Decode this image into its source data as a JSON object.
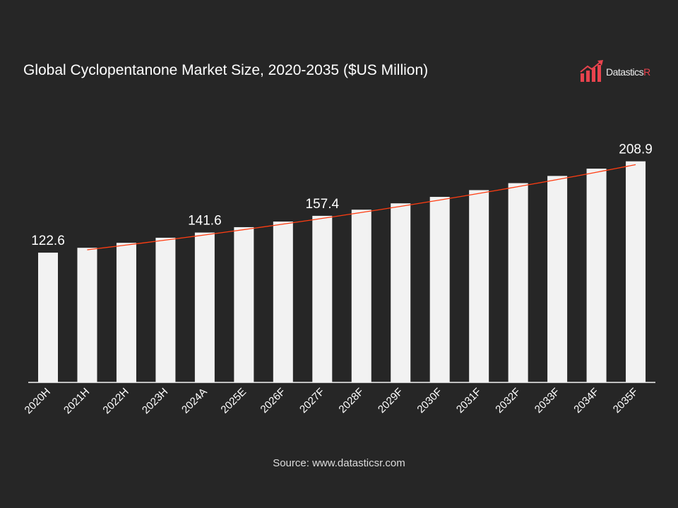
{
  "title": "Global Cyclopentanone Market Size, 2020-2035 ($US Million)",
  "logo": {
    "text_main": "Datastics",
    "text_accent": "R",
    "accent_color": "#e8434d"
  },
  "source": "Source: www.datasticsr.com",
  "chart_data": {
    "type": "bar",
    "title": "Global Cyclopentanone Market Size, 2020-2035 ($US Million)",
    "categories": [
      "2020H",
      "2021H",
      "2022H",
      "2023H",
      "2024A",
      "2025E",
      "2026F",
      "2027F",
      "2028F",
      "2029F",
      "2030F",
      "2031F",
      "2032F",
      "2033F",
      "2034F",
      "2035F"
    ],
    "values": [
      122.6,
      127.2,
      131.9,
      136.7,
      141.6,
      146.7,
      152.0,
      157.4,
      163.2,
      169.2,
      175.3,
      181.7,
      188.3,
      195.1,
      202.0,
      208.9
    ],
    "data_labels": {
      "0": "122.6",
      "4": "141.6",
      "7": "157.4",
      "15": "208.9"
    },
    "ylim": [
      0,
      209
    ],
    "trendline": {
      "type": "exponential",
      "from_index": 1,
      "to_index": 15,
      "color": "#ff3d12"
    },
    "bar_color": "#f2f2f2",
    "grid": false,
    "xlabel": "",
    "ylabel": ""
  }
}
